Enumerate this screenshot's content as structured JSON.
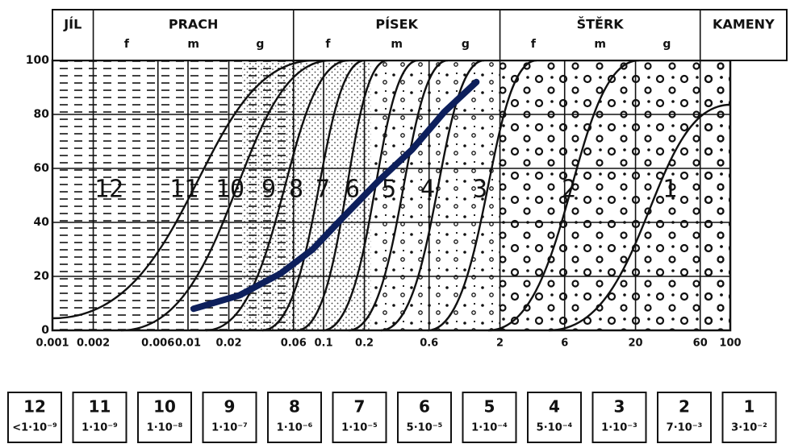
{
  "chart_data": {
    "type": "line",
    "xscale": "log",
    "xlim": [
      0.001,
      100
    ],
    "ylim": [
      0,
      100
    ],
    "xticks": [
      0.001,
      0.002,
      0.006,
      0.01,
      0.02,
      0.06,
      0.1,
      0.2,
      0.6,
      2,
      6,
      20,
      60,
      100
    ],
    "yticks": [
      0,
      20,
      40,
      60,
      80,
      100
    ],
    "grid": true,
    "series": [
      {
        "color": "#0d1f5c",
        "x": [
          0.011,
          0.024,
          0.048,
          0.083,
          0.14,
          0.25,
          0.45,
          0.78,
          1.34
        ],
        "values": [
          8,
          13,
          21,
          30,
          42,
          55,
          67,
          81,
          92
        ]
      }
    ],
    "header": [
      {
        "label": "JÍL"
      },
      {
        "label": "PRACH",
        "parts": [
          "f",
          "m",
          "g"
        ]
      },
      {
        "label": "PÍSEK",
        "parts": [
          "f",
          "m",
          "g"
        ]
      },
      {
        "label": "ŠTĚRK",
        "parts": [
          "f",
          "m",
          "g"
        ]
      },
      {
        "label": "KAMENY"
      }
    ],
    "zones": [
      "12",
      "11",
      "10",
      "9",
      "8",
      "7",
      "6",
      "5",
      "4",
      "3",
      "2",
      "1"
    ],
    "legend_boxes": [
      {
        "number": "12",
        "k": "<1·10⁻⁹"
      },
      {
        "number": "11",
        "k": "1·10⁻⁹"
      },
      {
        "number": "10",
        "k": "1·10⁻⁸"
      },
      {
        "number": "9",
        "k": "1·10⁻⁷"
      },
      {
        "number": "8",
        "k": "1·10⁻⁶"
      },
      {
        "number": "7",
        "k": "1·10⁻⁵"
      },
      {
        "number": "6",
        "k": "5·10⁻⁵"
      },
      {
        "number": "5",
        "k": "1·10⁻⁴"
      },
      {
        "number": "4",
        "k": "5·10⁻⁴"
      },
      {
        "number": "3",
        "k": "1·10⁻³"
      },
      {
        "number": "2",
        "k": "7·10⁻³"
      },
      {
        "number": "1",
        "k": "3·10⁻²"
      }
    ]
  }
}
